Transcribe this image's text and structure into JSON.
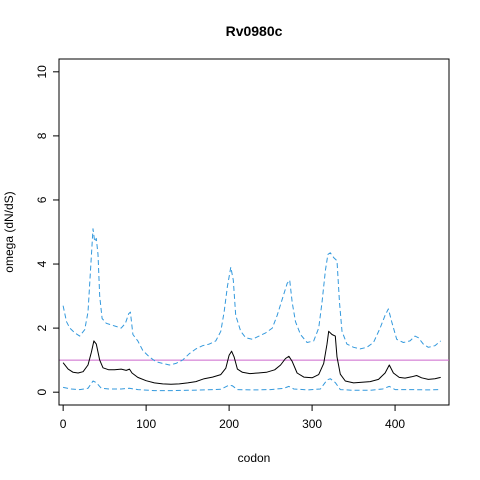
{
  "chart_data": {
    "type": "line",
    "title": "Rv0980c",
    "xlabel": "codon",
    "ylabel": "omega (dN/dS)",
    "xlim": [
      -5,
      465
    ],
    "ylim": [
      -0.4,
      10.4
    ],
    "xticks": [
      0,
      100,
      200,
      300,
      400
    ],
    "yticks": [
      0,
      2,
      4,
      6,
      8,
      10
    ],
    "reference_line": {
      "y": 1,
      "color": "#cc66cc"
    },
    "series": [
      {
        "role": "estimate",
        "color": "#000000",
        "dash": "solid",
        "points": [
          [
            0,
            0.92
          ],
          [
            6,
            0.72
          ],
          [
            12,
            0.62
          ],
          [
            18,
            0.6
          ],
          [
            24,
            0.64
          ],
          [
            30,
            0.85
          ],
          [
            34,
            1.25
          ],
          [
            37,
            1.6
          ],
          [
            40,
            1.5
          ],
          [
            44,
            1.0
          ],
          [
            48,
            0.76
          ],
          [
            55,
            0.7
          ],
          [
            62,
            0.7
          ],
          [
            70,
            0.72
          ],
          [
            76,
            0.68
          ],
          [
            80,
            0.72
          ],
          [
            83,
            0.6
          ],
          [
            90,
            0.46
          ],
          [
            100,
            0.36
          ],
          [
            110,
            0.29
          ],
          [
            120,
            0.26
          ],
          [
            130,
            0.25
          ],
          [
            140,
            0.26
          ],
          [
            150,
            0.29
          ],
          [
            160,
            0.33
          ],
          [
            170,
            0.42
          ],
          [
            180,
            0.47
          ],
          [
            190,
            0.55
          ],
          [
            196,
            0.75
          ],
          [
            200,
            1.15
          ],
          [
            203,
            1.28
          ],
          [
            206,
            1.1
          ],
          [
            210,
            0.72
          ],
          [
            216,
            0.62
          ],
          [
            225,
            0.58
          ],
          [
            235,
            0.6
          ],
          [
            245,
            0.62
          ],
          [
            255,
            0.7
          ],
          [
            262,
            0.85
          ],
          [
            268,
            1.05
          ],
          [
            272,
            1.12
          ],
          [
            276,
            0.96
          ],
          [
            282,
            0.6
          ],
          [
            290,
            0.47
          ],
          [
            300,
            0.45
          ],
          [
            308,
            0.55
          ],
          [
            314,
            0.9
          ],
          [
            318,
            1.5
          ],
          [
            320,
            1.9
          ],
          [
            324,
            1.8
          ],
          [
            328,
            1.75
          ],
          [
            330,
            1.1
          ],
          [
            334,
            0.56
          ],
          [
            340,
            0.35
          ],
          [
            350,
            0.29
          ],
          [
            360,
            0.31
          ],
          [
            370,
            0.33
          ],
          [
            380,
            0.4
          ],
          [
            388,
            0.6
          ],
          [
            393,
            0.85
          ],
          [
            398,
            0.6
          ],
          [
            405,
            0.46
          ],
          [
            412,
            0.44
          ],
          [
            420,
            0.48
          ],
          [
            426,
            0.52
          ],
          [
            432,
            0.45
          ],
          [
            440,
            0.4
          ],
          [
            448,
            0.42
          ],
          [
            455,
            0.46
          ]
        ]
      },
      {
        "role": "upper",
        "color": "#3399dd",
        "dash": "dashed",
        "points": [
          [
            0,
            2.7
          ],
          [
            4,
            2.2
          ],
          [
            8,
            2.0
          ],
          [
            14,
            1.85
          ],
          [
            20,
            1.75
          ],
          [
            26,
            1.95
          ],
          [
            30,
            2.5
          ],
          [
            33,
            3.8
          ],
          [
            36,
            5.1
          ],
          [
            38,
            4.7
          ],
          [
            40,
            4.8
          ],
          [
            42,
            4.3
          ],
          [
            44,
            3.0
          ],
          [
            47,
            2.3
          ],
          [
            52,
            2.15
          ],
          [
            58,
            2.1
          ],
          [
            64,
            2.05
          ],
          [
            70,
            2.0
          ],
          [
            75,
            2.15
          ],
          [
            79,
            2.45
          ],
          [
            81,
            2.5
          ],
          [
            84,
            1.8
          ],
          [
            90,
            1.6
          ],
          [
            96,
            1.3
          ],
          [
            104,
            1.1
          ],
          [
            112,
            0.95
          ],
          [
            120,
            0.9
          ],
          [
            128,
            0.85
          ],
          [
            136,
            0.9
          ],
          [
            144,
            1.0
          ],
          [
            152,
            1.2
          ],
          [
            160,
            1.35
          ],
          [
            168,
            1.45
          ],
          [
            176,
            1.5
          ],
          [
            184,
            1.6
          ],
          [
            190,
            1.9
          ],
          [
            194,
            2.5
          ],
          [
            198,
            3.3
          ],
          [
            202,
            3.9
          ],
          [
            205,
            3.5
          ],
          [
            208,
            2.4
          ],
          [
            214,
            1.9
          ],
          [
            220,
            1.7
          ],
          [
            228,
            1.65
          ],
          [
            236,
            1.75
          ],
          [
            244,
            1.85
          ],
          [
            252,
            2.0
          ],
          [
            258,
            2.4
          ],
          [
            264,
            2.9
          ],
          [
            270,
            3.4
          ],
          [
            273,
            3.5
          ],
          [
            276,
            2.8
          ],
          [
            280,
            2.2
          ],
          [
            286,
            1.8
          ],
          [
            294,
            1.55
          ],
          [
            302,
            1.6
          ],
          [
            308,
            2.0
          ],
          [
            312,
            2.8
          ],
          [
            316,
            3.8
          ],
          [
            319,
            4.3
          ],
          [
            322,
            4.35
          ],
          [
            326,
            4.2
          ],
          [
            330,
            4.1
          ],
          [
            333,
            2.8
          ],
          [
            336,
            1.9
          ],
          [
            342,
            1.5
          ],
          [
            350,
            1.4
          ],
          [
            358,
            1.35
          ],
          [
            366,
            1.4
          ],
          [
            374,
            1.55
          ],
          [
            382,
            2.0
          ],
          [
            388,
            2.4
          ],
          [
            392,
            2.6
          ],
          [
            396,
            2.2
          ],
          [
            402,
            1.65
          ],
          [
            410,
            1.55
          ],
          [
            418,
            1.6
          ],
          [
            424,
            1.75
          ],
          [
            428,
            1.7
          ],
          [
            434,
            1.5
          ],
          [
            440,
            1.4
          ],
          [
            448,
            1.45
          ],
          [
            455,
            1.6
          ]
        ]
      },
      {
        "role": "lower",
        "color": "#3399dd",
        "dash": "dashed",
        "points": [
          [
            0,
            0.15
          ],
          [
            10,
            0.1
          ],
          [
            20,
            0.08
          ],
          [
            30,
            0.12
          ],
          [
            36,
            0.35
          ],
          [
            40,
            0.3
          ],
          [
            46,
            0.12
          ],
          [
            56,
            0.1
          ],
          [
            70,
            0.1
          ],
          [
            80,
            0.12
          ],
          [
            90,
            0.08
          ],
          [
            110,
            0.05
          ],
          [
            130,
            0.05
          ],
          [
            150,
            0.06
          ],
          [
            170,
            0.07
          ],
          [
            190,
            0.09
          ],
          [
            200,
            0.22
          ],
          [
            204,
            0.2
          ],
          [
            210,
            0.08
          ],
          [
            230,
            0.07
          ],
          [
            250,
            0.08
          ],
          [
            266,
            0.12
          ],
          [
            272,
            0.18
          ],
          [
            278,
            0.1
          ],
          [
            295,
            0.07
          ],
          [
            310,
            0.1
          ],
          [
            318,
            0.38
          ],
          [
            322,
            0.42
          ],
          [
            328,
            0.3
          ],
          [
            334,
            0.08
          ],
          [
            350,
            0.06
          ],
          [
            370,
            0.06
          ],
          [
            385,
            0.1
          ],
          [
            393,
            0.18
          ],
          [
            400,
            0.08
          ],
          [
            420,
            0.08
          ],
          [
            440,
            0.07
          ],
          [
            455,
            0.08
          ]
        ]
      }
    ]
  }
}
